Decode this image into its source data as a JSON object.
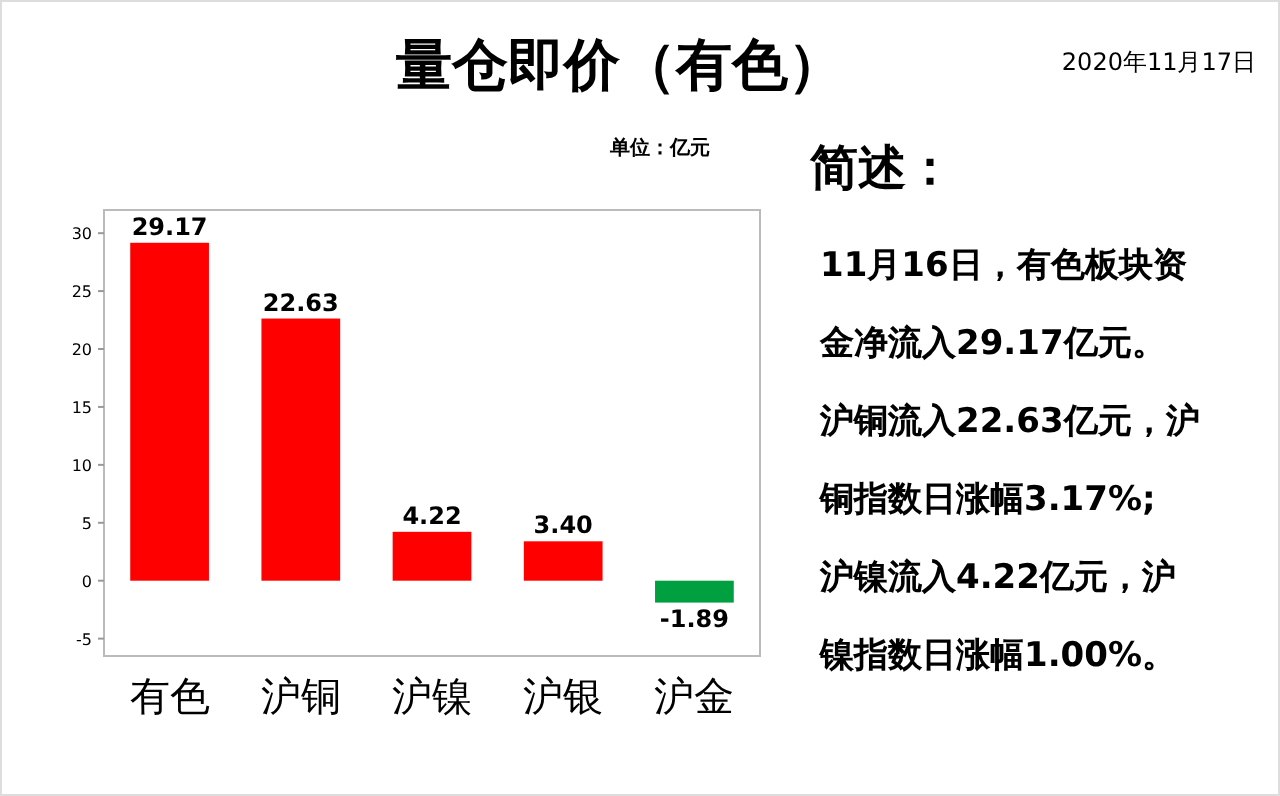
{
  "chart_data": {
    "type": "bar",
    "title": "量仓即价（有色）",
    "categories": [
      "有色",
      "沪铜",
      "沪镍",
      "沪银",
      "沪金"
    ],
    "values": [
      29.17,
      22.63,
      4.22,
      3.4,
      -1.89
    ],
    "colors": [
      "#ff0000",
      "#ff0000",
      "#ff0000",
      "#ff0000",
      "#00a040"
    ],
    "ylim": [
      -6.5,
      32
    ],
    "yticks": [
      -5,
      0,
      5,
      10,
      15,
      20,
      25,
      30
    ],
    "value_labels": [
      "29.17",
      "22.63",
      "4.22",
      "3.40",
      "-1.89"
    ],
    "grid": false,
    "annotations": [
      "2020年11月17日",
      "单位：亿元",
      "简述：",
      "11月16日，有色板块资",
      "金净流入29.17亿元。",
      "沪铜流入22.63亿元，沪",
      "铜指数日涨幅3.17%;",
      "沪镍流入4.22亿元，沪",
      "镍指数日涨幅1.00%。"
    ]
  }
}
